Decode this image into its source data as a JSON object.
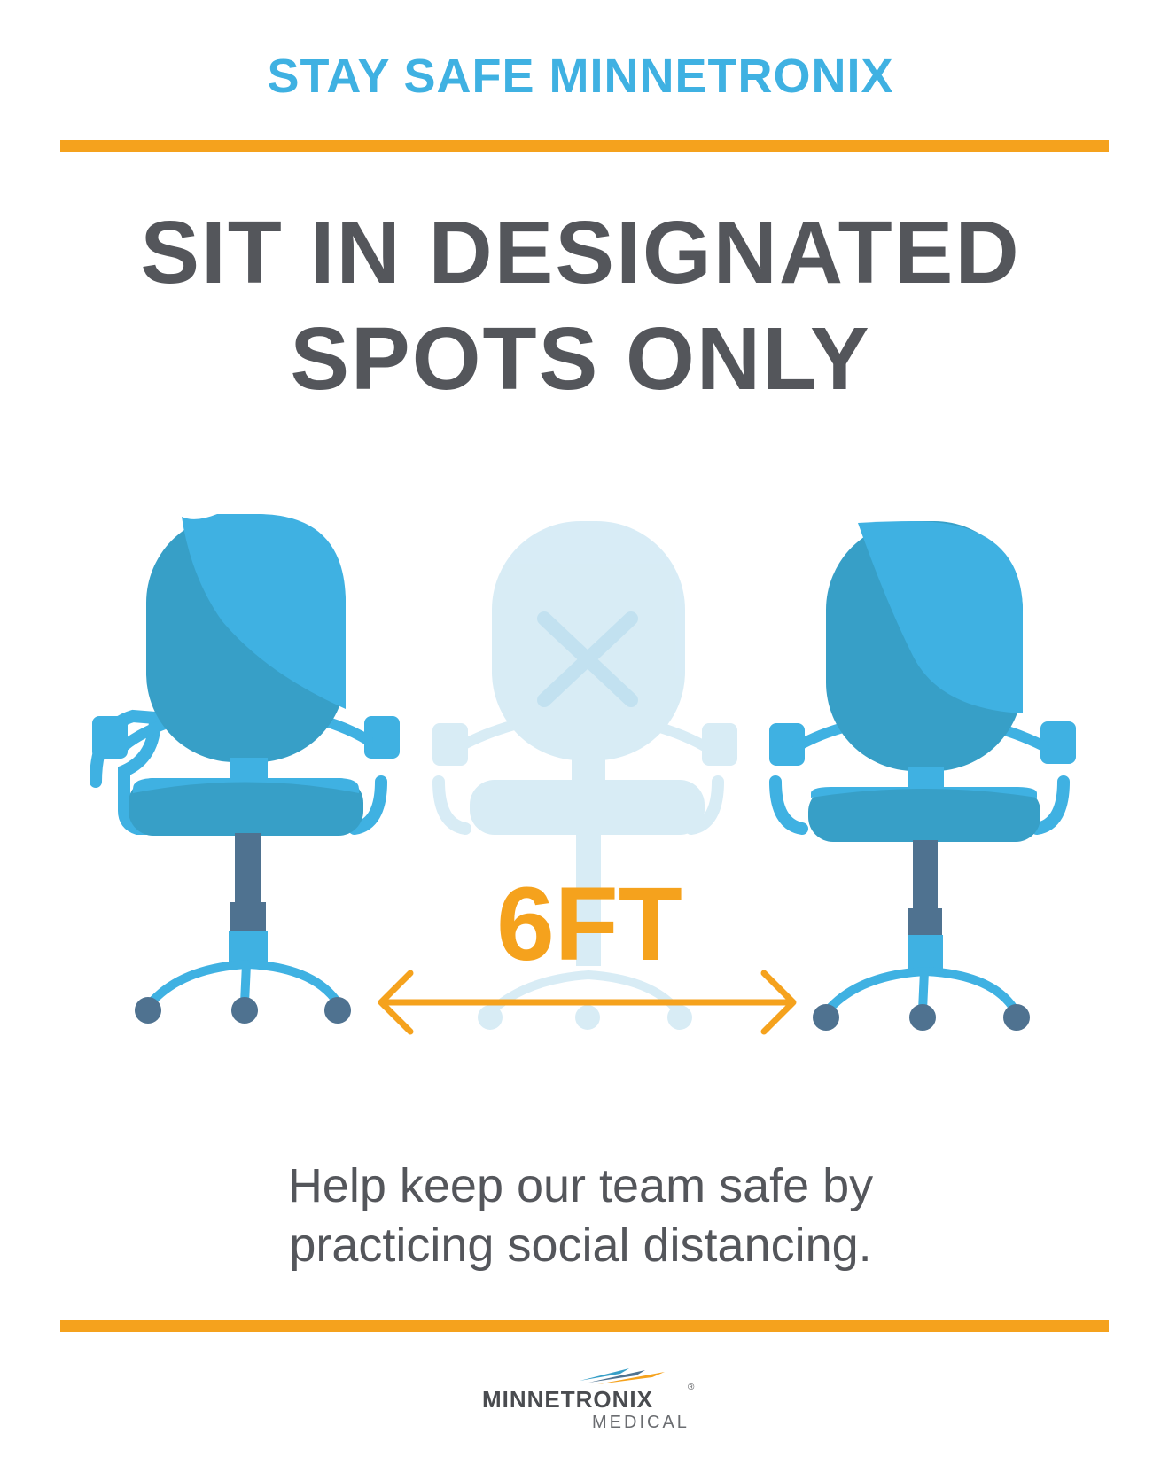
{
  "header": {
    "title": "STAY SAFE MINNETRONIX"
  },
  "headline": {
    "line1": "SIT IN DESIGNATED",
    "line2": "SPOTS ONLY"
  },
  "illustration": {
    "distance_label": "6FT",
    "chairs": [
      {
        "state": "available"
      },
      {
        "state": "blocked"
      },
      {
        "state": "available"
      }
    ]
  },
  "message": {
    "line1": "Help keep our team safe by",
    "line2": "practicing social distancing."
  },
  "logo": {
    "name": "MINNETRONIX",
    "registered": "®",
    "sub": "MEDICAL"
  },
  "colors": {
    "accent_blue": "#3fb1e2",
    "dark_blue": "#379fc7",
    "pale_blue": "#d6ebf5",
    "orange": "#f5a21d",
    "text_gray": "#54565b"
  }
}
